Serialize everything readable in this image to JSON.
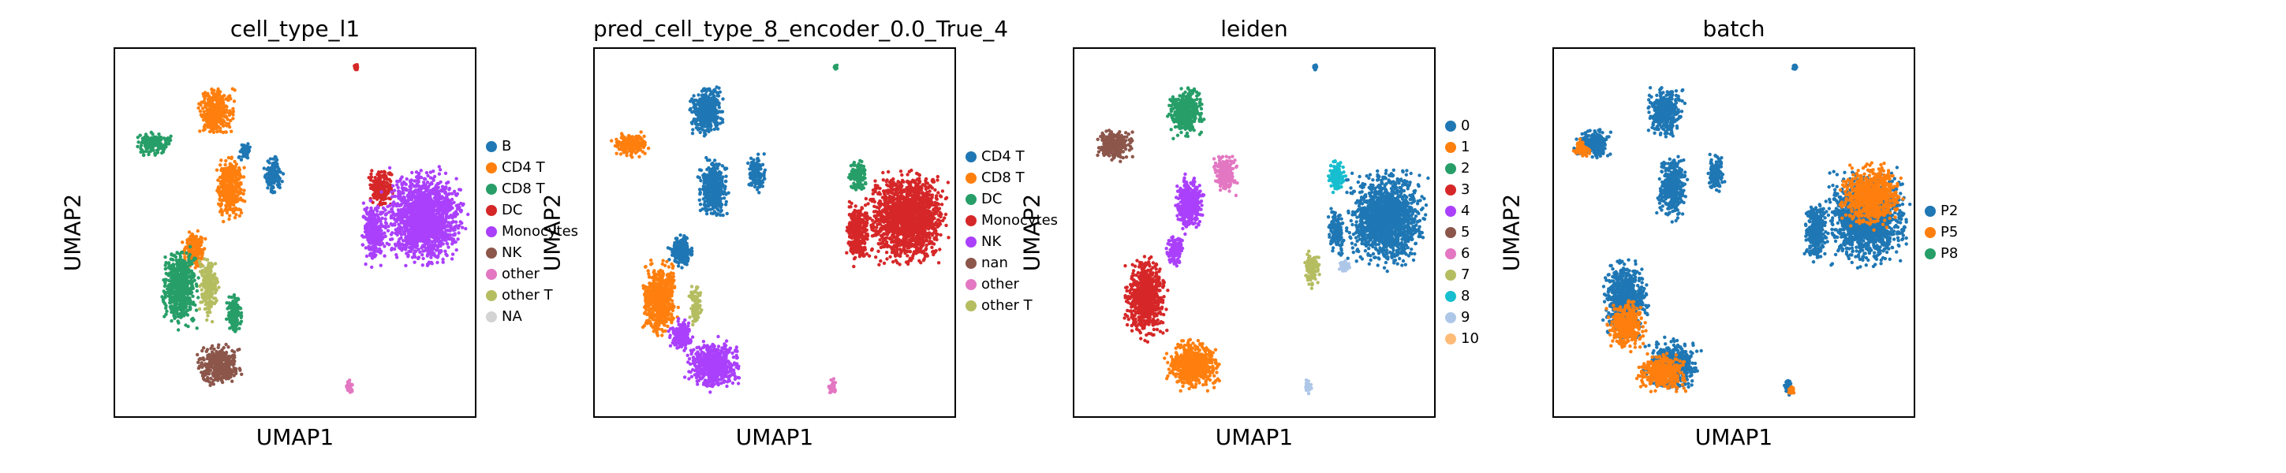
{
  "colors": {
    "blue": "#1f77b4",
    "orange": "#ff7f0e",
    "green": "#279e68",
    "red": "#d62728",
    "purple": "#aa40fc",
    "brown": "#8c564b",
    "pink": "#e377c2",
    "olive": "#b5bd61",
    "cyan": "#17becf",
    "lightblue": "#aec7e8",
    "peach": "#ffbb78",
    "gray": "#d3d3d3"
  },
  "chart_data": [
    {
      "type": "scatter",
      "title": "cell_type_l1",
      "xlabel": "UMAP1",
      "ylabel": "UMAP2",
      "grid": false,
      "legend": "right",
      "categories": [
        "B",
        "CD4 T",
        "CD8 T",
        "DC",
        "Monocytes",
        "NK",
        "other",
        "other T",
        "NA"
      ],
      "category_colors": [
        "#1f77b4",
        "#ff7f0e",
        "#279e68",
        "#d62728",
        "#aa40fc",
        "#8c564b",
        "#e377c2",
        "#b5bd61",
        "#d3d3d3"
      ],
      "legend_labels": [
        "B",
        "CD4 T",
        "CD8 T",
        "DC",
        "Monocytes",
        "NK",
        "other",
        "other T",
        "NA"
      ],
      "clusters": [
        {
          "c": 1,
          "x": 0.28,
          "y": 0.17,
          "rx": 0.06,
          "ry": 0.08
        },
        {
          "c": 1,
          "x": 0.32,
          "y": 0.38,
          "rx": 0.05,
          "ry": 0.1
        },
        {
          "c": 1,
          "x": 0.22,
          "y": 0.55,
          "rx": 0.04,
          "ry": 0.06
        },
        {
          "c": 2,
          "x": 0.11,
          "y": 0.26,
          "rx": 0.06,
          "ry": 0.04
        },
        {
          "c": 2,
          "x": 0.18,
          "y": 0.65,
          "rx": 0.06,
          "ry": 0.13
        },
        {
          "c": 2,
          "x": 0.33,
          "y": 0.72,
          "rx": 0.03,
          "ry": 0.06
        },
        {
          "c": 7,
          "x": 0.26,
          "y": 0.65,
          "rx": 0.03,
          "ry": 0.1
        },
        {
          "c": 5,
          "x": 0.29,
          "y": 0.86,
          "rx": 0.07,
          "ry": 0.07
        },
        {
          "c": 0,
          "x": 0.44,
          "y": 0.34,
          "rx": 0.03,
          "ry": 0.06
        },
        {
          "c": 0,
          "x": 0.36,
          "y": 0.28,
          "rx": 0.02,
          "ry": 0.03
        },
        {
          "c": 3,
          "x": 0.74,
          "y": 0.38,
          "rx": 0.04,
          "ry": 0.06
        },
        {
          "c": 4,
          "x": 0.86,
          "y": 0.46,
          "rx": 0.13,
          "ry": 0.15
        },
        {
          "c": 4,
          "x": 0.72,
          "y": 0.5,
          "rx": 0.04,
          "ry": 0.1
        },
        {
          "c": 6,
          "x": 0.65,
          "y": 0.92,
          "rx": 0.012,
          "ry": 0.025
        },
        {
          "c": 3,
          "x": 0.67,
          "y": 0.05,
          "rx": 0.006,
          "ry": 0.008
        }
      ]
    },
    {
      "type": "scatter",
      "title": "pred_cell_type_8_encoder_0.0_True_4",
      "xlabel": "UMAP1",
      "ylabel": "UMAP2",
      "grid": false,
      "legend": "right",
      "categories": [
        "CD4 T",
        "CD8 T",
        "DC",
        "Monocytes",
        "NK",
        "nan",
        "other",
        "other T"
      ],
      "category_colors": [
        "#1f77b4",
        "#ff7f0e",
        "#279e68",
        "#d62728",
        "#aa40fc",
        "#8c564b",
        "#e377c2",
        "#b5bd61"
      ],
      "legend_labels": [
        "CD4 T",
        "CD8 T",
        "DC",
        "Monocytes",
        "NK",
        "nan",
        "other",
        "other T"
      ],
      "clusters": [
        {
          "c": 0,
          "x": 0.31,
          "y": 0.17,
          "rx": 0.06,
          "ry": 0.08
        },
        {
          "c": 0,
          "x": 0.33,
          "y": 0.38,
          "rx": 0.05,
          "ry": 0.1
        },
        {
          "c": 0,
          "x": 0.24,
          "y": 0.55,
          "rx": 0.04,
          "ry": 0.06
        },
        {
          "c": 1,
          "x": 0.1,
          "y": 0.26,
          "rx": 0.06,
          "ry": 0.04
        },
        {
          "c": 1,
          "x": 0.18,
          "y": 0.68,
          "rx": 0.06,
          "ry": 0.12
        },
        {
          "c": 7,
          "x": 0.28,
          "y": 0.7,
          "rx": 0.02,
          "ry": 0.07
        },
        {
          "c": 4,
          "x": 0.33,
          "y": 0.86,
          "rx": 0.09,
          "ry": 0.08
        },
        {
          "c": 4,
          "x": 0.24,
          "y": 0.78,
          "rx": 0.04,
          "ry": 0.05
        },
        {
          "c": 0,
          "x": 0.45,
          "y": 0.34,
          "rx": 0.03,
          "ry": 0.06
        },
        {
          "c": 2,
          "x": 0.73,
          "y": 0.35,
          "rx": 0.03,
          "ry": 0.05
        },
        {
          "c": 3,
          "x": 0.87,
          "y": 0.46,
          "rx": 0.13,
          "ry": 0.15
        },
        {
          "c": 3,
          "x": 0.73,
          "y": 0.5,
          "rx": 0.04,
          "ry": 0.1
        },
        {
          "c": 6,
          "x": 0.66,
          "y": 0.92,
          "rx": 0.012,
          "ry": 0.025
        },
        {
          "c": 2,
          "x": 0.67,
          "y": 0.05,
          "rx": 0.006,
          "ry": 0.008
        }
      ]
    },
    {
      "type": "scatter",
      "title": "leiden",
      "xlabel": "UMAP1",
      "ylabel": "UMAP2",
      "grid": false,
      "legend": "right",
      "categories": [
        "0",
        "1",
        "2",
        "3",
        "4",
        "5",
        "6",
        "7",
        "8",
        "9",
        "10"
      ],
      "category_colors": [
        "#1f77b4",
        "#ff7f0e",
        "#279e68",
        "#d62728",
        "#aa40fc",
        "#8c564b",
        "#e377c2",
        "#b5bd61",
        "#17becf",
        "#aec7e8",
        "#ffbb78"
      ],
      "legend_labels": [
        "0",
        "1",
        "2",
        "3",
        "4",
        "5",
        "6",
        "7",
        "8",
        "9",
        "10"
      ],
      "clusters": [
        {
          "c": 2,
          "x": 0.31,
          "y": 0.17,
          "rx": 0.06,
          "ry": 0.08
        },
        {
          "c": 4,
          "x": 0.32,
          "y": 0.42,
          "rx": 0.05,
          "ry": 0.09
        },
        {
          "c": 4,
          "x": 0.28,
          "y": 0.55,
          "rx": 0.03,
          "ry": 0.05
        },
        {
          "c": 6,
          "x": 0.42,
          "y": 0.34,
          "rx": 0.04,
          "ry": 0.06
        },
        {
          "c": 5,
          "x": 0.11,
          "y": 0.26,
          "rx": 0.06,
          "ry": 0.05
        },
        {
          "c": 3,
          "x": 0.2,
          "y": 0.68,
          "rx": 0.07,
          "ry": 0.13
        },
        {
          "c": 1,
          "x": 0.33,
          "y": 0.86,
          "rx": 0.09,
          "ry": 0.08
        },
        {
          "c": 0,
          "x": 0.87,
          "y": 0.46,
          "rx": 0.13,
          "ry": 0.15
        },
        {
          "c": 0,
          "x": 0.73,
          "y": 0.5,
          "rx": 0.03,
          "ry": 0.07
        },
        {
          "c": 8,
          "x": 0.73,
          "y": 0.35,
          "rx": 0.03,
          "ry": 0.05
        },
        {
          "c": 7,
          "x": 0.66,
          "y": 0.6,
          "rx": 0.025,
          "ry": 0.06
        },
        {
          "c": 9,
          "x": 0.65,
          "y": 0.92,
          "rx": 0.012,
          "ry": 0.025
        },
        {
          "c": 9,
          "x": 0.75,
          "y": 0.59,
          "rx": 0.02,
          "ry": 0.02
        },
        {
          "c": 0,
          "x": 0.67,
          "y": 0.05,
          "rx": 0.006,
          "ry": 0.008
        }
      ]
    },
    {
      "type": "scatter",
      "title": "batch",
      "xlabel": "UMAP1",
      "ylabel": "UMAP2",
      "grid": false,
      "legend": "right",
      "categories": [
        "P2",
        "P5",
        "P8"
      ],
      "category_colors": [
        "#1f77b4",
        "#ff7f0e",
        "#279e68"
      ],
      "legend_labels": [
        "P2",
        "P5",
        "P8"
      ],
      "clusters": [
        {
          "c": 0,
          "x": 0.31,
          "y": 0.17,
          "rx": 0.06,
          "ry": 0.08
        },
        {
          "c": 0,
          "x": 0.33,
          "y": 0.38,
          "rx": 0.05,
          "ry": 0.1
        },
        {
          "c": 0,
          "x": 0.11,
          "y": 0.26,
          "rx": 0.06,
          "ry": 0.05
        },
        {
          "c": 0,
          "x": 0.2,
          "y": 0.68,
          "rx": 0.07,
          "ry": 0.13
        },
        {
          "c": 0,
          "x": 0.33,
          "y": 0.86,
          "rx": 0.09,
          "ry": 0.08
        },
        {
          "c": 0,
          "x": 0.45,
          "y": 0.34,
          "rx": 0.03,
          "ry": 0.06
        },
        {
          "c": 0,
          "x": 0.87,
          "y": 0.46,
          "rx": 0.13,
          "ry": 0.15
        },
        {
          "c": 0,
          "x": 0.73,
          "y": 0.5,
          "rx": 0.04,
          "ry": 0.1
        },
        {
          "c": 0,
          "x": 0.65,
          "y": 0.92,
          "rx": 0.012,
          "ry": 0.025
        },
        {
          "c": 1,
          "x": 0.88,
          "y": 0.4,
          "rx": 0.1,
          "ry": 0.1
        },
        {
          "c": 1,
          "x": 0.2,
          "y": 0.75,
          "rx": 0.06,
          "ry": 0.08
        },
        {
          "c": 1,
          "x": 0.3,
          "y": 0.88,
          "rx": 0.08,
          "ry": 0.06
        },
        {
          "c": 1,
          "x": 0.08,
          "y": 0.27,
          "rx": 0.03,
          "ry": 0.03
        },
        {
          "c": 1,
          "x": 0.66,
          "y": 0.93,
          "rx": 0.01,
          "ry": 0.015
        },
        {
          "c": 0,
          "x": 0.67,
          "y": 0.05,
          "rx": 0.006,
          "ry": 0.008
        }
      ]
    }
  ]
}
